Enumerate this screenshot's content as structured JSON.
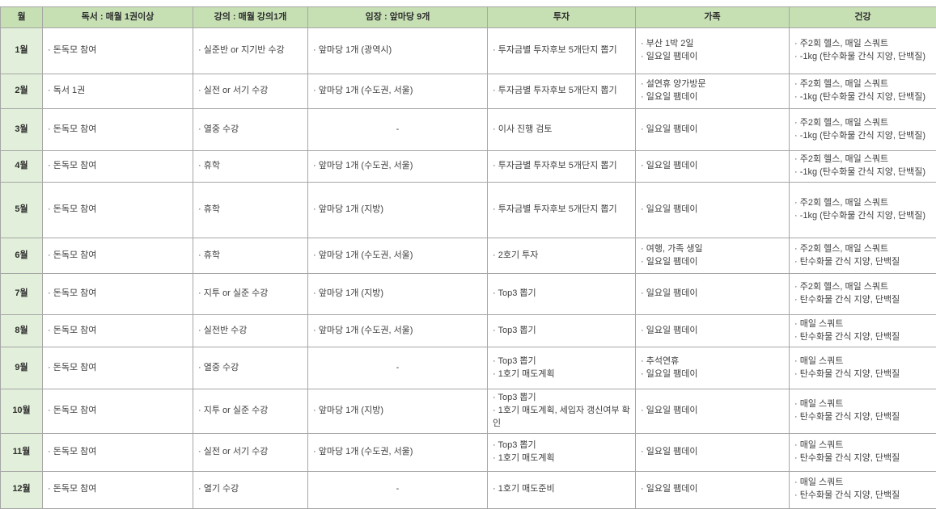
{
  "colors": {
    "header_bg": "#c6e0b4",
    "month_bg": "#e2efda",
    "border": "#a6a6a6",
    "text": "#404040"
  },
  "bullet": "·",
  "table": {
    "columns": [
      {
        "key": "month",
        "label": "월"
      },
      {
        "key": "reading",
        "label": "독서 : 매월 1권이상"
      },
      {
        "key": "lecture",
        "label": "강의 : 매월 강의1개"
      },
      {
        "key": "visit",
        "label": "임장 : 앞마당 9개"
      },
      {
        "key": "invest",
        "label": "투자"
      },
      {
        "key": "family",
        "label": "가족"
      },
      {
        "key": "health",
        "label": "건강"
      }
    ],
    "rows": [
      {
        "month": "1월",
        "reading": [
          "돈독모 참여"
        ],
        "lecture": [
          "실준반 or 지기반 수강"
        ],
        "visit": [
          "앞마당 1개 (광역시)"
        ],
        "invest": [
          "투자금별 투자후보 5개단지 뽑기"
        ],
        "family": [
          "부산 1박 2일",
          "일요일 팸데이"
        ],
        "health": [
          "주2회 헬스, 매일 스쿼트",
          "-1kg (탄수화물 간식 지양, 단백질)"
        ]
      },
      {
        "month": "2월",
        "reading": [
          "독서 1권"
        ],
        "lecture": [
          "실전 or 서기 수강"
        ],
        "visit": [
          "앞마당 1개 (수도권, 서울)"
        ],
        "invest": [
          "투자금별 투자후보 5개단지 뽑기"
        ],
        "family": [
          "설연휴 양가방문",
          "일요일 팸데이"
        ],
        "health": [
          "주2회 헬스, 매일 스쿼트",
          "-1kg (탄수화물 간식 지양, 단백질)"
        ]
      },
      {
        "month": "3월",
        "reading": [
          "돈독모 참여"
        ],
        "lecture": [
          "열중 수강"
        ],
        "visit": "-",
        "invest": [
          "이사 진행 검토"
        ],
        "family": [
          "일요일 팸데이"
        ],
        "health": [
          "주2회 헬스, 매일 스쿼트",
          "-1kg (탄수화물 간식 지양, 단백질)"
        ]
      },
      {
        "month": "4월",
        "reading": [
          "돈독모 참여"
        ],
        "lecture": [
          "휴학"
        ],
        "visit": [
          "앞마당 1개 (수도권, 서울)"
        ],
        "invest": [
          "투자금별 투자후보 5개단지 뽑기"
        ],
        "family": [
          "일요일 팸데이"
        ],
        "health": [
          "주2회 헬스, 매일 스쿼트",
          "-1kg (탄수화물 간식 지양, 단백질)"
        ]
      },
      {
        "month": "5월",
        "reading": [
          "돈독모 참여"
        ],
        "lecture": [
          "휴학"
        ],
        "visit": [
          "앞마당 1개 (지방)"
        ],
        "invest": [
          "투자금별 투자후보 5개단지 뽑기"
        ],
        "family": [
          "일요일 팸데이"
        ],
        "health": [
          "주2회 헬스, 매일 스쿼트",
          "-1kg (탄수화물 간식 지양, 단백질)"
        ]
      },
      {
        "month": "6월",
        "reading": [
          "돈독모 참여"
        ],
        "lecture": [
          "휴학"
        ],
        "visit": [
          "앞마당 1개 (수도권, 서울)"
        ],
        "invest": [
          "2호기 투자"
        ],
        "family": [
          "여행, 가족 생일",
          "일요일 팸데이"
        ],
        "health": [
          "주2회 헬스, 매일 스쿼트",
          "탄수화물 간식 지양, 단백질"
        ]
      },
      {
        "month": "7월",
        "reading": [
          "돈독모 참여"
        ],
        "lecture": [
          "지투 or 실준 수강"
        ],
        "visit": [
          "앞마당 1개 (지방)"
        ],
        "invest": [
          "Top3 뽑기"
        ],
        "family": [
          "일요일 팸데이"
        ],
        "health": [
          "주2회 헬스, 매일 스쿼트",
          "탄수화물 간식 지양, 단백질"
        ]
      },
      {
        "month": "8월",
        "reading": [
          "돈독모 참여"
        ],
        "lecture": [
          "실전반 수강"
        ],
        "visit": [
          "앞마당 1개 (수도권, 서울)"
        ],
        "invest": [
          "Top3 뽑기"
        ],
        "family": [
          "일요일 팸데이"
        ],
        "health": [
          "매일 스쿼트",
          "탄수화물 간식 지양, 단백질"
        ]
      },
      {
        "month": "9월",
        "reading": [
          "돈독모 참여"
        ],
        "lecture": [
          "열중 수강"
        ],
        "visit": "-",
        "invest": [
          "Top3 뽑기",
          "1호기 매도계획"
        ],
        "family": [
          "추석연휴",
          "일요일 팸데이"
        ],
        "health": [
          "매일 스쿼트",
          "탄수화물 간식 지양, 단백질"
        ]
      },
      {
        "month": "10월",
        "reading": [
          "돈독모 참여"
        ],
        "lecture": [
          "지투 or 실준 수강"
        ],
        "visit": [
          "앞마당 1개 (지방)"
        ],
        "invest": [
          "Top3 뽑기",
          "1호기 매도계획, 세입자 갱신여부 확인"
        ],
        "family": [
          "일요일 팸데이"
        ],
        "health": [
          "매일 스쿼트",
          "탄수화물 간식 지양, 단백질"
        ]
      },
      {
        "month": "11월",
        "reading": [
          "돈독모 참여"
        ],
        "lecture": [
          "실전 or 서기 수강"
        ],
        "visit": [
          "앞마당 1개 (수도권, 서울)"
        ],
        "invest": [
          "Top3 뽑기",
          "1호기 매도계획"
        ],
        "family": [
          "일요일 팸데이"
        ],
        "health": [
          "매일 스쿼트",
          "탄수화물 간식 지양, 단백질"
        ]
      },
      {
        "month": "12월",
        "reading": [
          "돈독모 참여"
        ],
        "lecture": [
          "열기 수강"
        ],
        "visit": "-",
        "invest": [
          "1호기 매도준비"
        ],
        "family": [
          "일요일 팸데이"
        ],
        "health": [
          "매일 스쿼트",
          "탄수화물 간식 지양, 단백질"
        ]
      }
    ]
  }
}
